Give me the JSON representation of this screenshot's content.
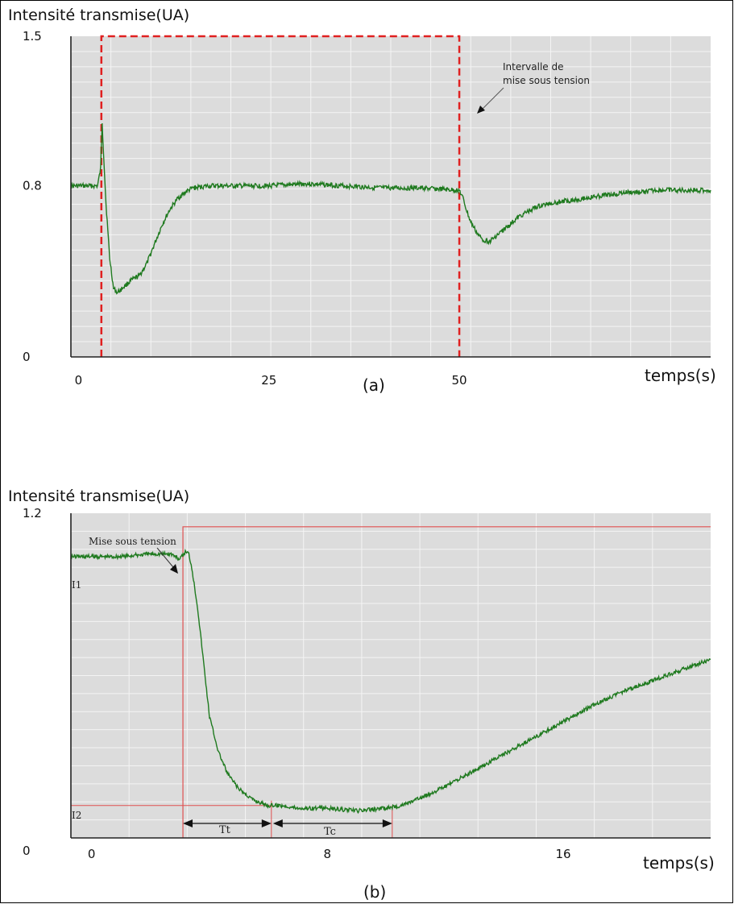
{
  "chart_data": [
    {
      "type": "line",
      "id": "a",
      "caption": "(a)",
      "ylabel": "Intensité transmise(UA)",
      "xlabel": "temps(s)",
      "xticks": [
        "0",
        "25",
        "50"
      ],
      "xtick_values": [
        0,
        25,
        50
      ],
      "yticks": [
        "0",
        "0.8",
        "1.5"
      ],
      "ytick_values": [
        0,
        0.8,
        1.5
      ],
      "xlim": [
        -1,
        83
      ],
      "ylim": [
        0,
        1.5
      ],
      "grid": true,
      "background": "#dcdcdc",
      "series": [
        {
          "color": "#1f7a1f",
          "x": [
            -1,
            2.5,
            2.9,
            3.1,
            3.6,
            4.1,
            4.6,
            5.1,
            6,
            7,
            8,
            9,
            10,
            11,
            12,
            13,
            14,
            15,
            17,
            20,
            25,
            30,
            35,
            40,
            45,
            49.5,
            50,
            50.5,
            51,
            51.5,
            52,
            52.5,
            53,
            54,
            55,
            56,
            57,
            58,
            60,
            62,
            64,
            66,
            68,
            70,
            72,
            74,
            76,
            78,
            80,
            83
          ],
          "y": [
            0.8,
            0.8,
            0.88,
            1.1,
            0.72,
            0.46,
            0.32,
            0.3,
            0.33,
            0.36,
            0.38,
            0.44,
            0.53,
            0.62,
            0.69,
            0.74,
            0.77,
            0.79,
            0.8,
            0.8,
            0.8,
            0.81,
            0.8,
            0.79,
            0.79,
            0.78,
            0.78,
            0.74,
            0.68,
            0.63,
            0.6,
            0.57,
            0.55,
            0.54,
            0.57,
            0.6,
            0.63,
            0.66,
            0.7,
            0.72,
            0.73,
            0.74,
            0.75,
            0.76,
            0.77,
            0.77,
            0.78,
            0.78,
            0.78,
            0.78
          ]
        }
      ],
      "voltage_interval": [
        3,
        50
      ],
      "voltage_level": 1.5,
      "voltage_color": "#e02020",
      "annotation": [
        "Intervalle de",
        "mise sous tension"
      ]
    },
    {
      "type": "line",
      "id": "b",
      "caption": "(b)",
      "ylabel": "Intensité transmise(UA)",
      "xlabel": "temps(s)",
      "xticks": [
        "0",
        "8",
        "16"
      ],
      "xtick_values": [
        0,
        8,
        16
      ],
      "yticks": [
        "0",
        "1.2"
      ],
      "ytick_values": [
        0,
        1.2
      ],
      "xlim": [
        -0.7,
        21
      ],
      "ylim": [
        0,
        1.2
      ],
      "grid": true,
      "background": "#dcdcdc",
      "level_labels": [
        "I1",
        "I2"
      ],
      "interval_labels": [
        "Tt",
        "Tc"
      ],
      "annotation": "Mise sous tension",
      "voltage_on": 3.1,
      "voltage_level": 1.15,
      "voltage_color": "#e05050",
      "I1": 1.05,
      "I2": 0.12,
      "t_end_transition": 6.1,
      "t_end_plateau": 10.2,
      "series": [
        {
          "color": "#1f7a1f",
          "x": [
            -0.7,
            0,
            1,
            2,
            2.7,
            3.0,
            3.2,
            3.3,
            3.4,
            3.6,
            3.8,
            4.0,
            4.3,
            4.6,
            5.0,
            5.5,
            6.0,
            6.5,
            7,
            8,
            9,
            10,
            10.5,
            11,
            12,
            13,
            14,
            15,
            16,
            17,
            18,
            19,
            20,
            21
          ],
          "y": [
            1.04,
            1.04,
            1.04,
            1.05,
            1.05,
            1.03,
            1.06,
            1.05,
            1.0,
            0.85,
            0.65,
            0.45,
            0.32,
            0.24,
            0.18,
            0.14,
            0.12,
            0.12,
            0.11,
            0.11,
            0.1,
            0.11,
            0.12,
            0.14,
            0.19,
            0.25,
            0.31,
            0.37,
            0.43,
            0.49,
            0.54,
            0.58,
            0.62,
            0.66
          ]
        }
      ]
    }
  ]
}
